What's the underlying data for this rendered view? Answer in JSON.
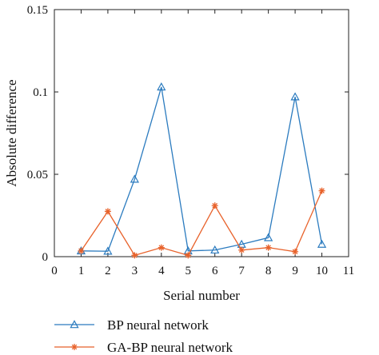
{
  "chart_data": {
    "type": "line",
    "title": "",
    "xlabel": "Serial number",
    "ylabel": "Absolute difference",
    "xlim": [
      0,
      11
    ],
    "ylim": [
      0,
      0.15
    ],
    "x_ticks": [
      "0",
      "1",
      "2",
      "3",
      "4",
      "5",
      "6",
      "7",
      "8",
      "9",
      "10",
      "11"
    ],
    "y_ticks": [
      "0",
      "0.05",
      "0.1",
      "0.15"
    ],
    "x": [
      1,
      2,
      3,
      4,
      5,
      6,
      7,
      8,
      9,
      10
    ],
    "grid": false,
    "legend_position": "bottom",
    "series": [
      {
        "name": "BP neural network",
        "color": "#2b7bbf",
        "marker": "triangle",
        "values": [
          0.0035,
          0.0033,
          0.047,
          0.103,
          0.0035,
          0.004,
          0.0075,
          0.0115,
          0.097,
          0.0075
        ]
      },
      {
        "name": "GA-BP neural network",
        "color": "#e8622b",
        "marker": "asterisk",
        "values": [
          0.0035,
          0.0275,
          0.0008,
          0.0055,
          0.0008,
          0.031,
          0.004,
          0.0055,
          0.003,
          0.04
        ]
      }
    ]
  }
}
